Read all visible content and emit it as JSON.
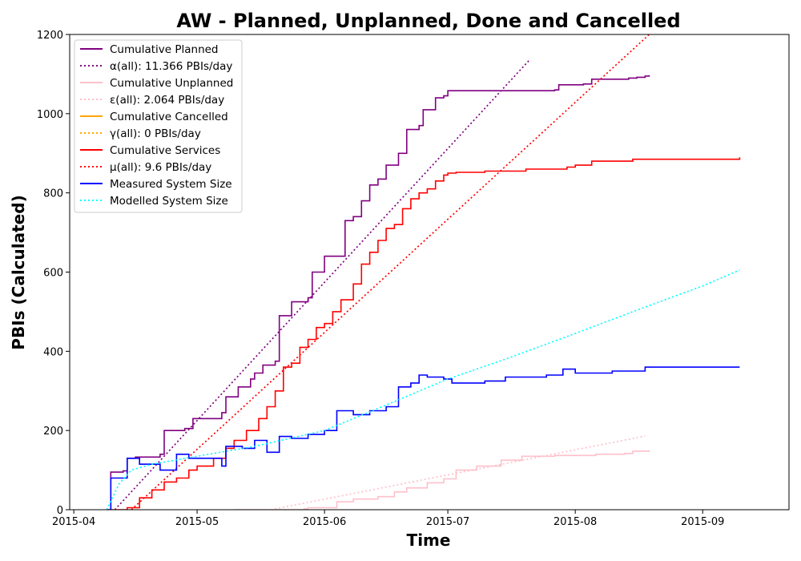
{
  "chart_data": {
    "type": "line",
    "title": "AW - Planned, Unplanned, Done  and Cancelled",
    "xlabel": "Time",
    "ylabel": "PBIs (Calculated)",
    "x_axis_type": "date",
    "xlim": [
      "2015-03-31",
      "2015-09-22"
    ],
    "ylim": [
      0,
      1200
    ],
    "x_ticks": [
      "2015-04",
      "2015-05",
      "2015-06",
      "2015-07",
      "2015-08",
      "2015-09"
    ],
    "y_ticks": [
      0,
      200,
      400,
      600,
      800,
      1000,
      1200
    ],
    "grid": false,
    "legend_position": "top-left",
    "series": [
      {
        "name": "Cumulative Planned",
        "style": "solid",
        "color": "#800080",
        "x": [
          "2015-04-09",
          "2015-04-10",
          "2015-04-13",
          "2015-04-14",
          "2015-04-16",
          "2015-04-22",
          "2015-04-23",
          "2015-04-28",
          "2015-04-30",
          "2015-05-07",
          "2015-05-08",
          "2015-05-11",
          "2015-05-14",
          "2015-05-15",
          "2015-05-17",
          "2015-05-20",
          "2015-05-21",
          "2015-05-24",
          "2015-05-28",
          "2015-05-29",
          "2015-06-01",
          "2015-06-04",
          "2015-06-06",
          "2015-06-08",
          "2015-06-10",
          "2015-06-12",
          "2015-06-14",
          "2015-06-16",
          "2015-06-19",
          "2015-06-21",
          "2015-06-24",
          "2015-06-25",
          "2015-06-28",
          "2015-06-30",
          "2015-07-01",
          "2015-07-27",
          "2015-07-28",
          "2015-08-03",
          "2015-08-05",
          "2015-08-14",
          "2015-08-16",
          "2015-08-18",
          "2015-08-19"
        ],
        "y": [
          0,
          95,
          98,
          130,
          133,
          140,
          200,
          205,
          230,
          245,
          285,
          310,
          330,
          345,
          365,
          375,
          490,
          525,
          535,
          600,
          640,
          640,
          730,
          740,
          780,
          820,
          835,
          870,
          900,
          960,
          970,
          1010,
          1040,
          1045,
          1058,
          1060,
          1073,
          1075,
          1087,
          1090,
          1092,
          1095,
          1097
        ]
      },
      {
        "name": "α(all): 11.366 PBIs/day",
        "style": "dotted",
        "color": "#800080",
        "x": [
          "2015-04-11",
          "2015-07-21"
        ],
        "y": [
          0,
          1137
        ]
      },
      {
        "name": "Cumulative Unplanned",
        "style": "solid",
        "color": "#ffc0cb",
        "x": [
          "2015-05-10",
          "2015-05-27",
          "2015-05-28",
          "2015-06-04",
          "2015-06-08",
          "2015-06-14",
          "2015-06-18",
          "2015-06-21",
          "2015-06-26",
          "2015-06-30",
          "2015-07-03",
          "2015-07-08",
          "2015-07-14",
          "2015-07-19",
          "2015-07-27",
          "2015-08-06",
          "2015-08-13",
          "2015-08-15",
          "2015-08-19"
        ],
        "y": [
          0,
          2,
          5,
          20,
          27,
          33,
          45,
          55,
          68,
          78,
          100,
          110,
          125,
          135,
          137,
          140,
          142,
          148,
          150
        ]
      },
      {
        "name": "ε(all): 2.064 PBIs/day",
        "style": "dotted",
        "color": "#ffc0cb",
        "x": [
          "2015-05-19",
          "2015-08-18"
        ],
        "y": [
          0,
          186
        ]
      },
      {
        "name": "Cumulative Cancelled",
        "style": "solid",
        "color": "#ffa500",
        "x": [],
        "y": []
      },
      {
        "name": "γ(all): 0 PBIs/day",
        "style": "dotted",
        "color": "#ffa500",
        "x": [],
        "y": []
      },
      {
        "name": "Cumulative Services",
        "style": "solid",
        "color": "#ff0000",
        "x": [
          "2015-04-10",
          "2015-04-14",
          "2015-04-17",
          "2015-04-20",
          "2015-04-23",
          "2015-04-26",
          "2015-04-29",
          "2015-05-01",
          "2015-05-05",
          "2015-05-08",
          "2015-05-10",
          "2015-05-13",
          "2015-05-16",
          "2015-05-18",
          "2015-05-20",
          "2015-05-22",
          "2015-05-24",
          "2015-05-26",
          "2015-05-28",
          "2015-05-30",
          "2015-06-01",
          "2015-06-03",
          "2015-06-05",
          "2015-06-08",
          "2015-06-10",
          "2015-06-12",
          "2015-06-14",
          "2015-06-16",
          "2015-06-18",
          "2015-06-20",
          "2015-06-22",
          "2015-06-24",
          "2015-06-26",
          "2015-06-28",
          "2015-06-30",
          "2015-07-01",
          "2015-07-03",
          "2015-07-10",
          "2015-07-20",
          "2015-07-30",
          "2015-08-01",
          "2015-08-05",
          "2015-08-15",
          "2015-09-10"
        ],
        "y": [
          0,
          5,
          30,
          50,
          70,
          80,
          100,
          110,
          130,
          155,
          175,
          200,
          230,
          260,
          300,
          360,
          370,
          410,
          430,
          460,
          470,
          500,
          530,
          570,
          620,
          650,
          680,
          710,
          720,
          760,
          785,
          800,
          810,
          830,
          845,
          850,
          852,
          855,
          860,
          865,
          870,
          880,
          885,
          890
        ]
      },
      {
        "name": "μ(all): 9.6 PBIs/day",
        "style": "dotted",
        "color": "#ff0000",
        "x": [
          "2015-04-15",
          "2015-08-19"
        ],
        "y": [
          0,
          1200
        ]
      },
      {
        "name": "Measured System Size",
        "style": "solid",
        "color": "#0000ff",
        "x": [
          "2015-04-09",
          "2015-04-10",
          "2015-04-14",
          "2015-04-17",
          "2015-04-22",
          "2015-04-26",
          "2015-04-29",
          "2015-05-02",
          "2015-05-07",
          "2015-05-08",
          "2015-05-12",
          "2015-05-15",
          "2015-05-18",
          "2015-05-21",
          "2015-05-24",
          "2015-05-28",
          "2015-06-01",
          "2015-06-04",
          "2015-06-08",
          "2015-06-12",
          "2015-06-16",
          "2015-06-19",
          "2015-06-22",
          "2015-06-24",
          "2015-06-26",
          "2015-06-30",
          "2015-07-02",
          "2015-07-06",
          "2015-07-10",
          "2015-07-15",
          "2015-07-25",
          "2015-07-29",
          "2015-08-01",
          "2015-08-10",
          "2015-08-18",
          "2015-09-10"
        ],
        "y": [
          0,
          80,
          130,
          115,
          100,
          140,
          130,
          130,
          110,
          160,
          155,
          175,
          145,
          185,
          180,
          190,
          200,
          250,
          240,
          250,
          260,
          310,
          320,
          340,
          335,
          330,
          320,
          320,
          325,
          335,
          340,
          355,
          345,
          350,
          360,
          360
        ]
      },
      {
        "name": "Modelled System Size",
        "style": "dotted",
        "color": "#00ffff",
        "x": [
          "2015-04-09",
          "2015-04-12",
          "2015-04-15",
          "2015-04-20",
          "2015-05-01",
          "2015-05-15",
          "2015-06-01",
          "2015-06-15",
          "2015-07-01",
          "2015-07-15",
          "2015-08-01",
          "2015-08-15",
          "2015-09-01",
          "2015-09-10"
        ],
        "y": [
          0,
          65,
          100,
          115,
          135,
          160,
          200,
          260,
          330,
          380,
          445,
          500,
          565,
          605
        ]
      }
    ]
  }
}
